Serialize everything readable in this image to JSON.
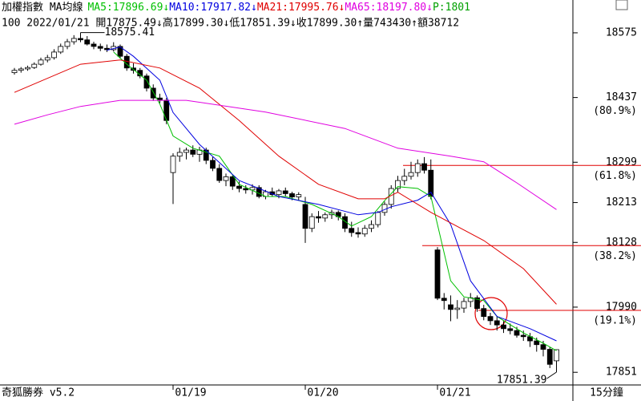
{
  "chart_data": {
    "type": "candlestick",
    "title": "加權指數 MA均線",
    "header_extra": "P:1801",
    "info": "100 2022/01/21 開17875.49↓高17899.30↓低17851.39↓收17899.30↑量743430↑額38712",
    "software": "奇狐勝券 v5.2",
    "period": "15分鐘",
    "categories": [
      null,
      null,
      null,
      null,
      null,
      null,
      null,
      null,
      null,
      null,
      null,
      null,
      null,
      null,
      null,
      null,
      null,
      null,
      null,
      null,
      null,
      null,
      null,
      null,
      "01/19",
      null,
      null,
      null,
      null,
      null,
      null,
      null,
      null,
      null,
      null,
      null,
      null,
      null,
      null,
      null,
      null,
      null,
      null,
      null,
      "01/20",
      null,
      null,
      null,
      null,
      null,
      null,
      null,
      null,
      null,
      null,
      null,
      null,
      null,
      null,
      null,
      null,
      null,
      null,
      null,
      "01/21",
      null,
      null,
      null,
      null,
      null,
      null,
      null,
      null,
      null,
      null,
      null,
      null,
      null,
      null,
      null,
      null,
      null,
      null
    ],
    "open": [
      18490,
      18495,
      18498,
      18501,
      18508,
      18517,
      18522,
      18534,
      18546,
      18556,
      18563,
      18560,
      18551,
      18546,
      18542,
      18539,
      18546,
      18525,
      18500,
      18495,
      18483,
      18457,
      18436,
      18431,
      18277,
      18312,
      18320,
      18325,
      18316,
      18325,
      18303,
      18286,
      18260,
      18268,
      18248,
      18243,
      18240,
      18245,
      18226,
      18236,
      18230,
      18238,
      18232,
      18225,
      18209,
      18158,
      18183,
      18180,
      18187,
      18192,
      18183,
      18158,
      18149,
      18146,
      18158,
      18166,
      18192,
      18209,
      18243,
      18260,
      18269,
      18277,
      18296,
      18282,
      18112,
      18009,
      17995,
      17985,
      17988,
      18002,
      18010,
      17987,
      17970,
      17961,
      17952,
      17944,
      17940,
      17930,
      17927,
      17918,
      17910,
      17900,
      17875.49
    ],
    "high": [
      18500,
      18502,
      18505,
      18512,
      18522,
      18528,
      18540,
      18552,
      18562,
      18570,
      18575.41,
      18568,
      18556,
      18552,
      18550,
      18555,
      18550,
      18530,
      18510,
      18500,
      18488,
      18465,
      18445,
      18436,
      18318,
      18330,
      18330,
      18335,
      18332,
      18330,
      18310,
      18295,
      18275,
      18272,
      18258,
      18250,
      18252,
      18250,
      18240,
      18245,
      18242,
      18245,
      18236,
      18235,
      18225,
      18190,
      18195,
      18192,
      18198,
      18196,
      18190,
      18172,
      18160,
      18165,
      18175,
      18195,
      18215,
      18250,
      18270,
      18285,
      18300,
      18305,
      18310,
      18305,
      18118,
      18020,
      18015,
      18005,
      18010,
      18020,
      18015,
      17995,
      17978,
      17970,
      17960,
      17955,
      17948,
      17940,
      17935,
      17925,
      17918,
      17905,
      17899.3
    ],
    "low": [
      18486,
      18490,
      18494,
      18498,
      18505,
      18512,
      18518,
      18530,
      18540,
      18550,
      18555,
      18548,
      18540,
      18536,
      18534,
      18535,
      18520,
      18494,
      18488,
      18478,
      18450,
      18430,
      18425,
      18380,
      18210,
      18300,
      18305,
      18310,
      18300,
      18295,
      18280,
      18255,
      18248,
      18240,
      18235,
      18232,
      18230,
      18222,
      18220,
      18225,
      18222,
      18225,
      18218,
      18218,
      18127,
      18150,
      18170,
      18172,
      18178,
      18175,
      18150,
      18140,
      18138,
      18140,
      18150,
      18160,
      18185,
      18200,
      18235,
      18250,
      18262,
      18268,
      18275,
      18220,
      18005,
      17985,
      17960,
      17965,
      17978,
      17990,
      17980,
      17962,
      17952,
      17940,
      17935,
      17932,
      17925,
      17918,
      17905,
      17895,
      17885,
      17860,
      17851.39
    ],
    "close": [
      18495,
      18498,
      18501,
      18508,
      18517,
      18522,
      18534,
      18546,
      18556,
      18563,
      18560,
      18551,
      18546,
      18542,
      18539,
      18546,
      18525,
      18500,
      18495,
      18483,
      18457,
      18436,
      18431,
      18388,
      18312,
      18320,
      18325,
      18316,
      18325,
      18303,
      18286,
      18260,
      18268,
      18248,
      18243,
      18240,
      18245,
      18226,
      18236,
      18230,
      18238,
      18232,
      18225,
      18230,
      18158,
      18183,
      18180,
      18187,
      18192,
      18183,
      18158,
      18149,
      18146,
      18158,
      18166,
      18192,
      18209,
      18243,
      18260,
      18269,
      18277,
      18296,
      18282,
      18226,
      18009,
      18004,
      17985,
      17988,
      18002,
      18010,
      17987,
      17970,
      17961,
      17952,
      17944,
      17940,
      17930,
      17927,
      17918,
      17910,
      17900,
      17868,
      17899.3
    ],
    "series": [
      {
        "name": "MA5:17896.69↓",
        "color": "#00c000",
        "x": [
          15,
          17,
          20,
          22,
          24,
          27,
          31,
          34,
          38,
          41,
          45,
          49,
          51,
          54,
          56,
          58,
          61,
          63,
          64,
          66,
          68,
          71,
          73,
          77,
          80,
          82
        ],
        "values": [
          18534,
          18508,
          18474,
          18423,
          18355,
          18329,
          18312,
          18252,
          18226,
          18226,
          18209,
          18183,
          18163,
          18183,
          18217,
          18247,
          18243,
          18226,
          18166,
          18046,
          18012,
          18004,
          17970,
          17935,
          17913,
          17897
        ]
      },
      {
        "name": "MA10:17917.82↓",
        "color": "#0000e0",
        "x": [
          14,
          16,
          18,
          22,
          24,
          28,
          34,
          40,
          46,
          52,
          55,
          57,
          61,
          63,
          66,
          69,
          73,
          78,
          82
        ],
        "values": [
          18538,
          18545,
          18525,
          18474,
          18405,
          18337,
          18260,
          18226,
          18209,
          18187,
          18192,
          18204,
          18218,
          18235,
          18166,
          18046,
          17970,
          17944,
          17918
        ]
      },
      {
        "name": "MA21:17995.76↓",
        "color": "#e00000",
        "x": [
          0,
          10,
          16,
          22,
          28,
          34,
          40,
          46,
          52,
          56,
          58,
          63,
          71,
          77,
          82
        ],
        "values": [
          18448,
          18508,
          18517,
          18500,
          18457,
          18388,
          18312,
          18252,
          18221,
          18221,
          18235,
          18192,
          18132,
          18072,
          17996
        ]
      },
      {
        "name": "MA65:18197.80↓",
        "color": "#e000e0",
        "x": [
          0,
          5,
          10,
          16,
          26,
          38,
          50,
          58,
          66,
          71,
          76,
          82
        ],
        "values": [
          18380,
          18400,
          18418,
          18431,
          18431,
          18406,
          18371,
          18329,
          18312,
          18300,
          18255,
          18198
        ]
      }
    ],
    "annotations": [
      {
        "label": "18575.41",
        "value": 18575.41
      },
      {
        "label": "17851.39",
        "value": 17851.39
      }
    ],
    "fib_levels": [
      {
        "value": 18437,
        "label": "(80.9%)",
        "line": false
      },
      {
        "value": 18299,
        "label": "(61.8%)",
        "line": true
      },
      {
        "value": 18128,
        "label": "(38.2%)",
        "line": true
      },
      {
        "value": 17990,
        "label": "(19.1%)",
        "line": true
      }
    ],
    "ylim": [
      17824,
      18645
    ],
    "yticks": [
      18575,
      18437,
      18299,
      18213,
      18128,
      17990,
      17851
    ],
    "up_color": "#ffffff",
    "down_color": "#000000",
    "fib_color": "#e00000"
  }
}
